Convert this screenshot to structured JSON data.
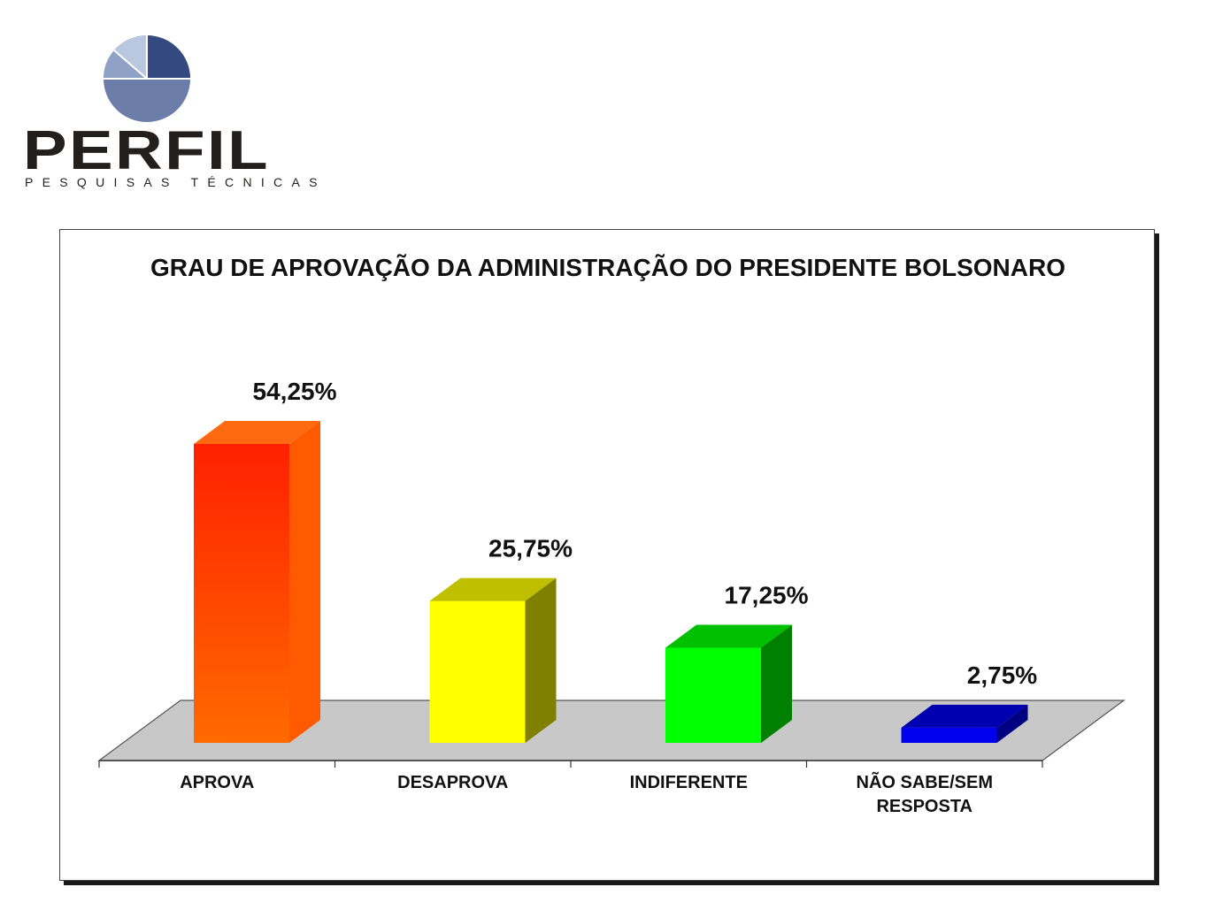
{
  "logo": {
    "brand": "PERFIL",
    "tagline": "PESQUISAS TÉCNICAS"
  },
  "chart_data": {
    "type": "bar",
    "title": "GRAU DE APROVAÇÃO DA ADMINISTRAÇÃO DO PRESIDENTE BOLSONARO",
    "categories": [
      "APROVA",
      "DESAPROVA",
      "INDIFERENTE",
      "NÃO SABE/SEM RESPOSTA"
    ],
    "category_lines": [
      [
        "APROVA"
      ],
      [
        "DESAPROVA"
      ],
      [
        "INDIFERENTE"
      ],
      [
        "NÃO SABE/SEM",
        "RESPOSTA"
      ]
    ],
    "values": [
      54.25,
      25.75,
      17.25,
      2.75
    ],
    "data_labels": [
      "54,25%",
      "25,75%",
      "17,25%",
      "2,75%"
    ],
    "colors": [
      "#ff3a00",
      "#ffff00",
      "#00ff00",
      "#0000ee"
    ],
    "ylim": [
      0,
      60
    ],
    "grid": false,
    "legend": "none",
    "style": "3d-bar"
  }
}
